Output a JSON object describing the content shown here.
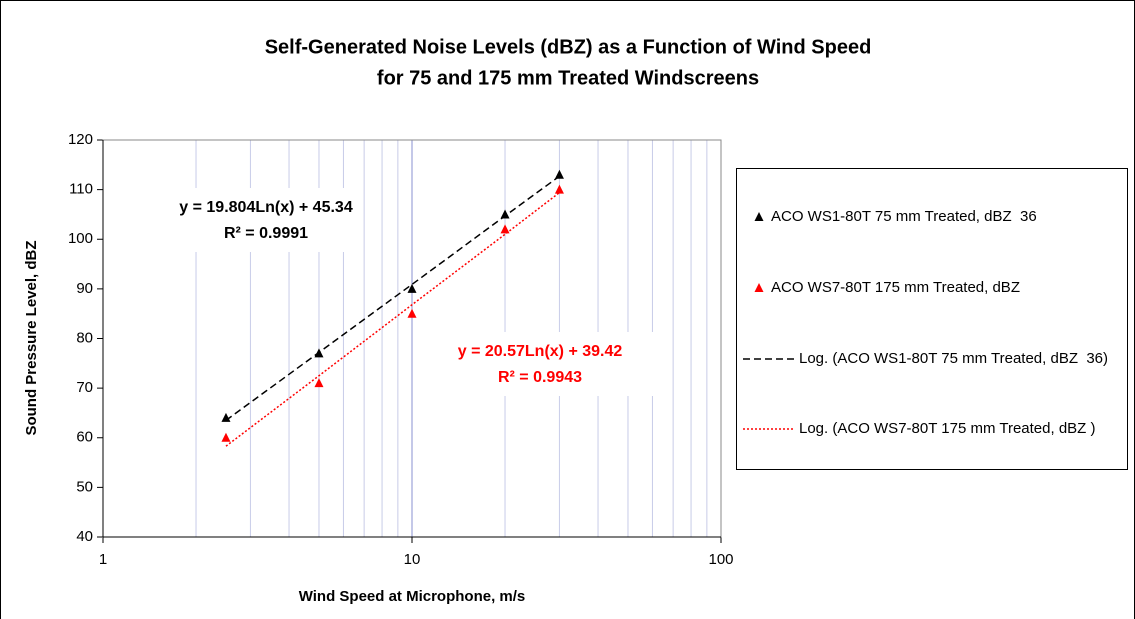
{
  "chart_data": {
    "type": "scatter",
    "title_lines": [
      "Self-Generated Noise Levels (dBZ) as a Function of Wind Speed",
      "for 75 and 175 mm Treated Windscreens"
    ],
    "x_label": "Wind Speed at Microphone, m/s",
    "y_label": "Sound Pressure Level, dBZ",
    "x_scale": "log",
    "xlim": [
      1,
      100
    ],
    "xticks": [
      1,
      10,
      100
    ],
    "ylim": [
      40,
      120
    ],
    "yticks": [
      40,
      50,
      60,
      70,
      80,
      90,
      100,
      110,
      120
    ],
    "grid": "x",
    "legend": "right",
    "series": [
      {
        "name": "ACO WS1-80T 75 mm Treated, dBZ  36",
        "color": "#000000",
        "style": "marker",
        "x": [
          2.5,
          5,
          10,
          20,
          30
        ],
        "values": [
          64,
          77,
          90,
          105,
          113
        ]
      },
      {
        "name": "ACO WS7-80T 175 mm Treated, dBZ",
        "color": "#ff0000",
        "style": "marker",
        "x": [
          2.5,
          5,
          10,
          20,
          30
        ],
        "values": [
          60,
          71,
          85,
          102,
          110
        ]
      },
      {
        "name": "Log. (ACO WS1-80T 75 mm Treated, dBZ  36)",
        "color": "#000000",
        "style": "dashed",
        "x": [
          2.5,
          5,
          10,
          20,
          30
        ],
        "values": [
          63.5,
          77.2,
          90.9,
          104.7,
          112.7
        ]
      },
      {
        "name": "Log. (ACO WS7-80T 175 mm Treated, dBZ )",
        "color": "#ff0000",
        "style": "dotted",
        "x": [
          2.5,
          5,
          10,
          20,
          30
        ],
        "values": [
          58.3,
          72.5,
          86.8,
          101.0,
          109.4
        ]
      }
    ],
    "annotations": [
      {
        "lines": [
          "y = 19.804Ln(x) + 45.34",
          "R² = 0.9991"
        ],
        "color": "#000000"
      },
      {
        "lines": [
          "y = 20.57Ln(x) + 39.42",
          "R² = 0.9943"
        ],
        "color": "#ff0000"
      }
    ]
  }
}
